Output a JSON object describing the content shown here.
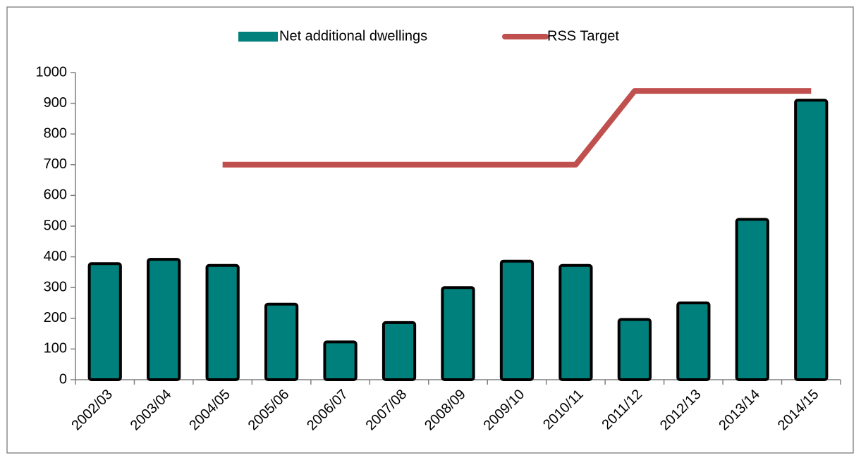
{
  "chart_data": {
    "type": "bar",
    "categories": [
      "2002/03",
      "2003/04",
      "2004/05",
      "2005/06",
      "2006/07",
      "2007/08",
      "2008/09",
      "2009/10",
      "2010/11",
      "2011/12",
      "2012/13",
      "2013/14",
      "2014/15"
    ],
    "series": [
      {
        "name": "Net additional dwellings",
        "type": "bar",
        "color": "#00807c",
        "values": [
          378,
          392,
          372,
          246,
          123,
          186,
          300,
          386,
          372,
          196,
          250,
          522,
          910
        ]
      },
      {
        "name": "RSS Target",
        "type": "line",
        "color": "#c0504d",
        "values": [
          null,
          null,
          700,
          700,
          700,
          700,
          700,
          700,
          700,
          940,
          940,
          940,
          940
        ]
      }
    ],
    "ylim": [
      0,
      1000
    ],
    "yticks": [
      0,
      100,
      200,
      300,
      400,
      500,
      600,
      700,
      800,
      900,
      1000
    ],
    "grid": false,
    "legend": "top"
  }
}
